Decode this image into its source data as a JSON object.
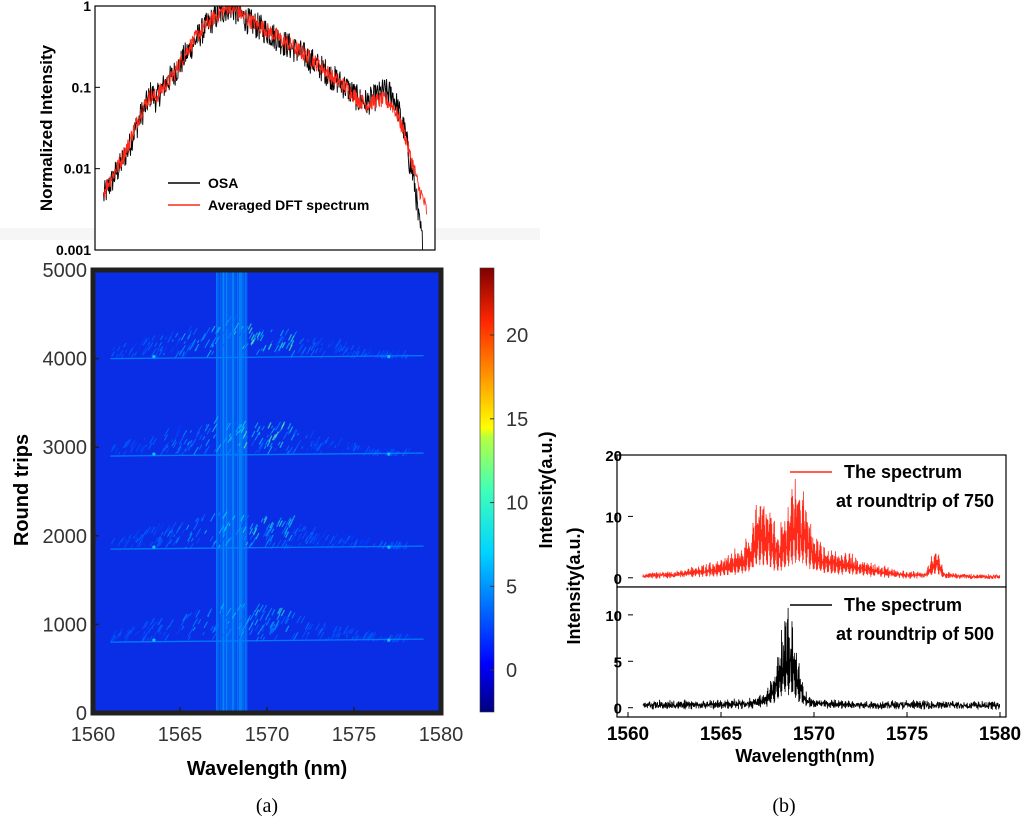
{
  "chart_data": [
    {
      "id": "a-top",
      "type": "line",
      "panel": "(a)",
      "ylabel": "Normalized Intensity",
      "yscale": "log",
      "ylim": [
        0.001,
        1
      ],
      "xlim": [
        1560,
        1580
      ],
      "y_ticks": [
        "1",
        "0.1",
        "0.01",
        "0.001"
      ],
      "legend": "bottom-center",
      "series": [
        {
          "name": "OSA",
          "color": "#000000",
          "points": [
            [
              1560.5,
              0.0045
            ],
            [
              1561,
              0.007
            ],
            [
              1561.5,
              0.011
            ],
            [
              1562,
              0.018
            ],
            [
              1562.5,
              0.035
            ],
            [
              1563,
              0.06
            ],
            [
              1563.3,
              0.085
            ],
            [
              1563.6,
              0.07
            ],
            [
              1564,
              0.1
            ],
            [
              1564.3,
              0.12
            ],
            [
              1564.6,
              0.14
            ],
            [
              1565,
              0.19
            ],
            [
              1565.5,
              0.28
            ],
            [
              1566,
              0.4
            ],
            [
              1566.5,
              0.55
            ],
            [
              1567,
              0.7
            ],
            [
              1567.5,
              0.85
            ],
            [
              1567.9,
              1.0
            ],
            [
              1568.3,
              0.85
            ],
            [
              1569,
              0.65
            ],
            [
              1570,
              0.5
            ],
            [
              1571,
              0.36
            ],
            [
              1572,
              0.27
            ],
            [
              1573,
              0.19
            ],
            [
              1574,
              0.13
            ],
            [
              1575,
              0.09
            ],
            [
              1575.5,
              0.07
            ],
            [
              1576,
              0.065
            ],
            [
              1576.5,
              0.075
            ],
            [
              1577,
              0.09
            ],
            [
              1577.5,
              0.08
            ],
            [
              1578,
              0.04
            ],
            [
              1578.5,
              0.012
            ],
            [
              1579,
              0.0025
            ],
            [
              1579.3,
              0.001
            ]
          ]
        },
        {
          "name": "Averaged DFT spectrum",
          "color": "#ff2a1a",
          "points": [
            [
              1560.5,
              0.005
            ],
            [
              1561,
              0.008
            ],
            [
              1561.5,
              0.012
            ],
            [
              1562,
              0.02
            ],
            [
              1562.5,
              0.038
            ],
            [
              1563,
              0.065
            ],
            [
              1563.3,
              0.08
            ],
            [
              1563.6,
              0.075
            ],
            [
              1564,
              0.1
            ],
            [
              1564.3,
              0.115
            ],
            [
              1564.6,
              0.14
            ],
            [
              1565,
              0.2
            ],
            [
              1565.5,
              0.3
            ],
            [
              1566,
              0.42
            ],
            [
              1566.5,
              0.57
            ],
            [
              1567,
              0.72
            ],
            [
              1567.5,
              0.87
            ],
            [
              1567.9,
              1.0
            ],
            [
              1568.3,
              0.88
            ],
            [
              1569,
              0.68
            ],
            [
              1570,
              0.52
            ],
            [
              1571,
              0.38
            ],
            [
              1572,
              0.28
            ],
            [
              1573,
              0.2
            ],
            [
              1574,
              0.13
            ],
            [
              1575,
              0.09
            ],
            [
              1575.5,
              0.07
            ],
            [
              1576,
              0.062
            ],
            [
              1576.5,
              0.068
            ],
            [
              1577,
              0.07
            ],
            [
              1577.5,
              0.06
            ],
            [
              1578,
              0.035
            ],
            [
              1578.5,
              0.015
            ],
            [
              1579,
              0.006
            ],
            [
              1579.5,
              0.003
            ]
          ]
        }
      ]
    },
    {
      "id": "a-map",
      "type": "heatmap",
      "panel": "(a)",
      "xlabel": "Wavelength (nm)",
      "ylabel": "Round trips",
      "colorbar_label": "Intensity(a.u.)",
      "xlim": [
        1560,
        1580
      ],
      "ylim": [
        0,
        5000
      ],
      "x_ticks": [
        "1560",
        "1565",
        "1570",
        "1575",
        "1580"
      ],
      "y_ticks": [
        "0",
        "1000",
        "2000",
        "3000",
        "4000",
        "5000"
      ],
      "colorbar_ticks": [
        "0",
        "5",
        "10",
        "15",
        "20"
      ],
      "colorbar_range": [
        -2.5,
        24
      ],
      "center_wavelength": 1568,
      "bursts": [
        {
          "roundtrip": 800,
          "peak": 9
        },
        {
          "roundtrip": 1850,
          "peak": 11
        },
        {
          "roundtrip": 2900,
          "peak": 12
        },
        {
          "roundtrip": 4000,
          "peak": 12
        }
      ]
    },
    {
      "id": "b-top",
      "type": "line",
      "panel": "(b)",
      "ylim": [
        -1.5,
        20
      ],
      "xlim": [
        1560,
        1580
      ],
      "y_ticks": [
        "0",
        "10",
        "20"
      ],
      "legend": "top-right",
      "series": [
        {
          "name": "The spectrum at roundtrip of 750",
          "legend_lines": [
            "The spectrum",
            "at roundtrip of 750"
          ],
          "color": "#ff2a1a",
          "envelope": [
            [
              1560.8,
              0.6
            ],
            [
              1562,
              0.9
            ],
            [
              1563,
              1.4
            ],
            [
              1564,
              2.2
            ],
            [
              1565,
              3.3
            ],
            [
              1566,
              5
            ],
            [
              1566.6,
              8
            ],
            [
              1567,
              15.5
            ],
            [
              1567.5,
              13.5
            ],
            [
              1568,
              8
            ],
            [
              1568.5,
              11
            ],
            [
              1569,
              17
            ],
            [
              1569.5,
              15.5
            ],
            [
              1570,
              7.5
            ],
            [
              1570.5,
              5.5
            ],
            [
              1571,
              5
            ],
            [
              1572,
              4
            ],
            [
              1573,
              2.6
            ],
            [
              1574,
              1.6
            ],
            [
              1575,
              1
            ],
            [
              1576,
              0.8
            ],
            [
              1576.6,
              5.5
            ],
            [
              1577,
              0.9
            ],
            [
              1578,
              0.5
            ],
            [
              1580,
              0.3
            ]
          ]
        }
      ]
    },
    {
      "id": "b-bottom",
      "type": "line",
      "panel": "(b)",
      "xlabel": "Wavelength(nm)",
      "ylabel": "Intensity(a.u.)",
      "ylim": [
        -1,
        13
      ],
      "xlim": [
        1560,
        1580
      ],
      "x_ticks": [
        "1560",
        "1565",
        "1570",
        "1575",
        "1580"
      ],
      "y_ticks": [
        "0",
        "5",
        "10"
      ],
      "legend": "top-right",
      "series": [
        {
          "name": "The  spectrum at roundtrip of 500",
          "legend_lines": [
            "The  spectrum",
            "at roundtrip of 500"
          ],
          "color": "#000000",
          "envelope": [
            [
              1560.8,
              0.6
            ],
            [
              1563,
              0.6
            ],
            [
              1565,
              0.7
            ],
            [
              1566.5,
              0.9
            ],
            [
              1567.3,
              1.5
            ],
            [
              1567.8,
              3.5
            ],
            [
              1568.2,
              8
            ],
            [
              1568.5,
              11.5
            ],
            [
              1568.8,
              10
            ],
            [
              1569.1,
              6
            ],
            [
              1569.5,
              2
            ],
            [
              1570,
              0.9
            ],
            [
              1572,
              0.6
            ],
            [
              1576,
              0.6
            ],
            [
              1580,
              0.5
            ]
          ]
        }
      ]
    }
  ],
  "captions": {
    "a": "(a)",
    "b": "(b)"
  }
}
